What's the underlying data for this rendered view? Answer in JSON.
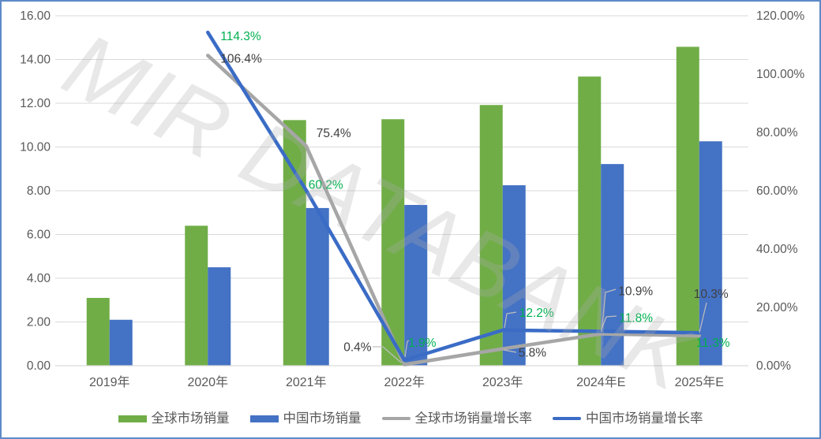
{
  "chart_data": {
    "type": "bar+line",
    "categories": [
      "2019年",
      "2020年",
      "2021年",
      "2022年",
      "2023年",
      "2024年E",
      "2025年E"
    ],
    "bar_series": [
      {
        "id": "global-sales",
        "name": "全球市场销量",
        "color": "#70AD47",
        "values": [
          3.1,
          6.4,
          11.23,
          11.27,
          11.92,
          13.22,
          14.58
        ]
      },
      {
        "id": "china-sales",
        "name": "中国市场销量",
        "color": "#4472C4",
        "values": [
          2.1,
          4.5,
          7.21,
          7.35,
          8.25,
          9.22,
          10.26
        ]
      }
    ],
    "line_series": [
      {
        "id": "global-growth",
        "name": "全球市场销量增长率",
        "color": "#A6A6A6",
        "label_color": "#404040",
        "values": [
          null,
          106.4,
          75.4,
          0.4,
          5.8,
          10.9,
          10.3
        ],
        "labels": [
          null,
          "106.4%",
          "75.4%",
          "0.4%",
          "5.8%",
          "10.9%",
          "10.3%"
        ]
      },
      {
        "id": "china-growth",
        "name": "中国市场销量增长率",
        "color": "#3A6CC6",
        "label_color": "#00B050",
        "values": [
          null,
          114.3,
          60.2,
          1.9,
          12.2,
          11.8,
          11.3
        ],
        "labels": [
          null,
          "114.3%",
          "60.2%",
          "1.9%",
          "12.2%",
          "11.8%",
          "11.3%"
        ]
      }
    ],
    "left_axis": {
      "min": 0,
      "max": 16,
      "step": 2,
      "format": "0.00",
      "tick_labels": [
        "0.00",
        "2.00",
        "4.00",
        "6.00",
        "8.00",
        "10.00",
        "12.00",
        "14.00",
        "16.00"
      ]
    },
    "right_axis": {
      "min": 0,
      "max": 120,
      "step": 20,
      "format": "0.00%",
      "tick_labels": [
        "0.00%",
        "20.00%",
        "40.00%",
        "60.00%",
        "80.00%",
        "100.00%",
        "120.00%"
      ]
    },
    "legend": [
      {
        "id": "global-sales",
        "label": "全球市场销量",
        "marker": "rect",
        "color": "#70AD47"
      },
      {
        "id": "china-sales",
        "label": "中国市场销量",
        "marker": "rect",
        "color": "#4472C4"
      },
      {
        "id": "global-growth",
        "label": "全球市场销量增长率",
        "marker": "line",
        "color": "#A6A6A6"
      },
      {
        "id": "china-growth",
        "label": "中国市场销量增长率",
        "marker": "line",
        "color": "#3A6CC6"
      }
    ],
    "watermark": "MIR DATABANK",
    "grid": true,
    "legend_position": "bottom",
    "colors": {
      "grid": "#D9D9D9",
      "axis_text": "#595959",
      "leader_line": "#BFBFBF",
      "frame_border": "#5D8AC9",
      "background": "#FFFFFF"
    }
  }
}
